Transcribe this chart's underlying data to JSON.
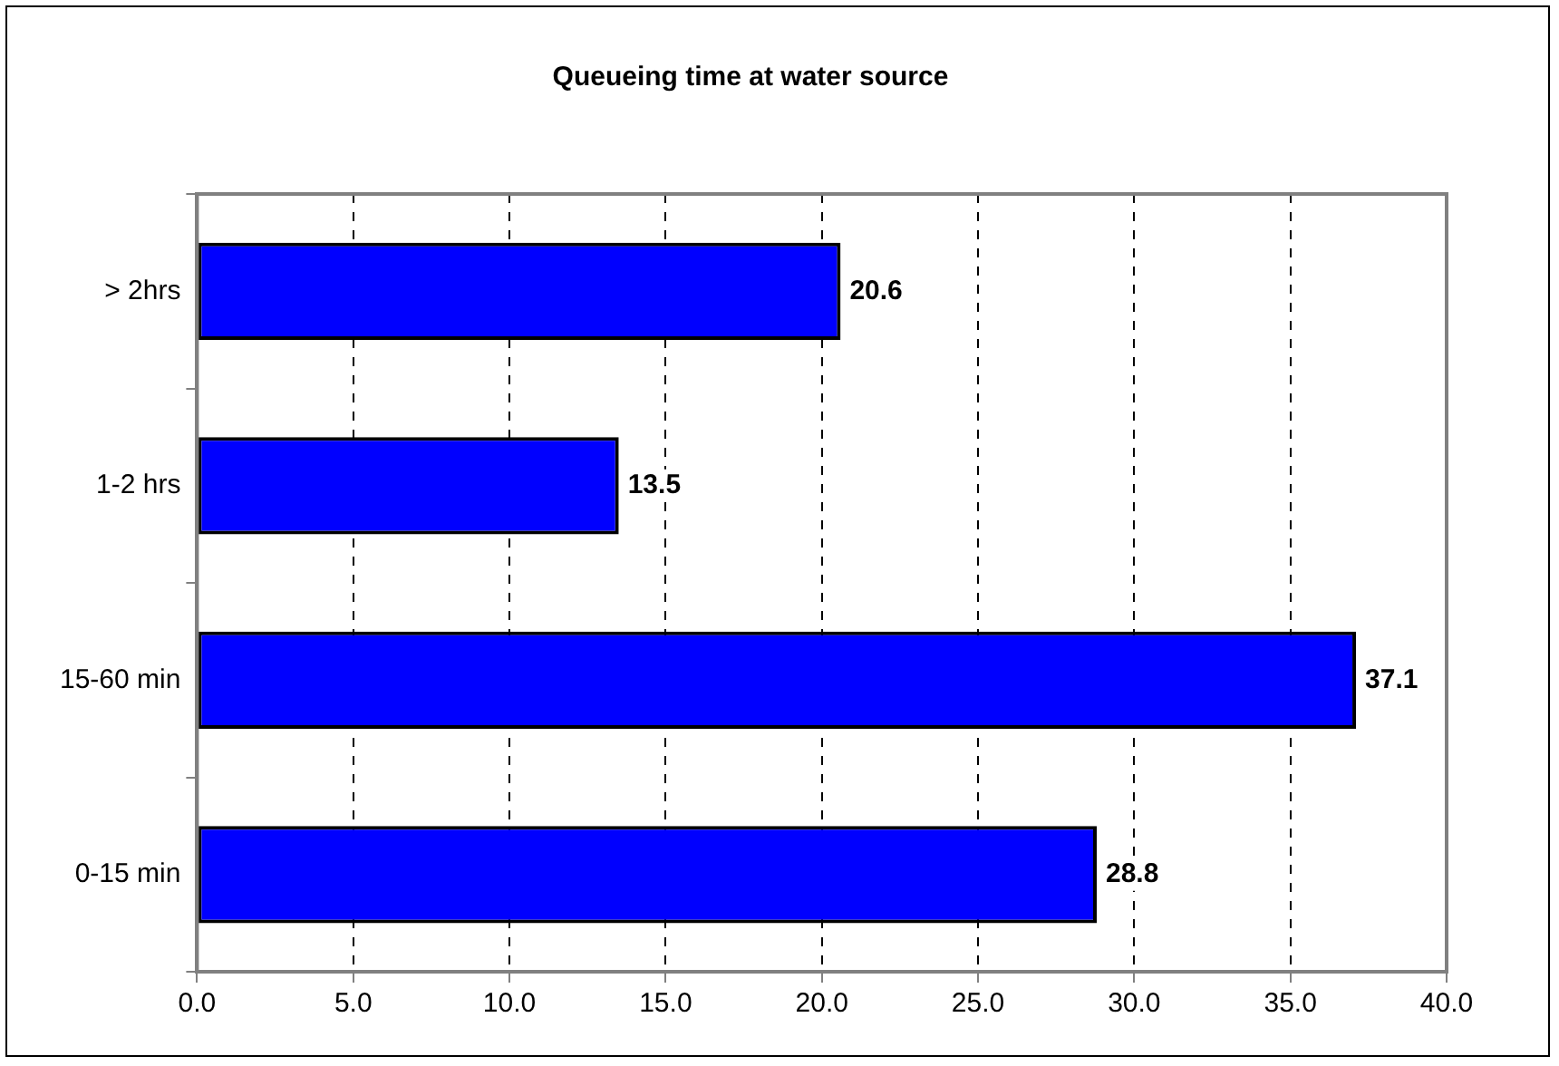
{
  "chart_data": {
    "type": "bar",
    "orientation": "horizontal",
    "title": "Queueing time at water source",
    "categories": [
      "> 2hrs",
      "1-2 hrs",
      "15-60 min",
      "0-15 min"
    ],
    "values": [
      20.6,
      13.5,
      37.1,
      28.8
    ],
    "color": "#0000ff",
    "xlim": [
      0,
      40
    ],
    "xticks": [
      {
        "value": 0,
        "label": "0.0"
      },
      {
        "value": 5,
        "label": "5.0"
      },
      {
        "value": 10,
        "label": "10.0"
      },
      {
        "value": 15,
        "label": "15.0"
      },
      {
        "value": 20,
        "label": "20.0"
      },
      {
        "value": 25,
        "label": "25.0"
      },
      {
        "value": 30,
        "label": "30.0"
      },
      {
        "value": 35,
        "label": "35.0"
      },
      {
        "value": 40,
        "label": "40.0"
      }
    ],
    "grid": "x",
    "data_labels": true,
    "legend": false
  }
}
